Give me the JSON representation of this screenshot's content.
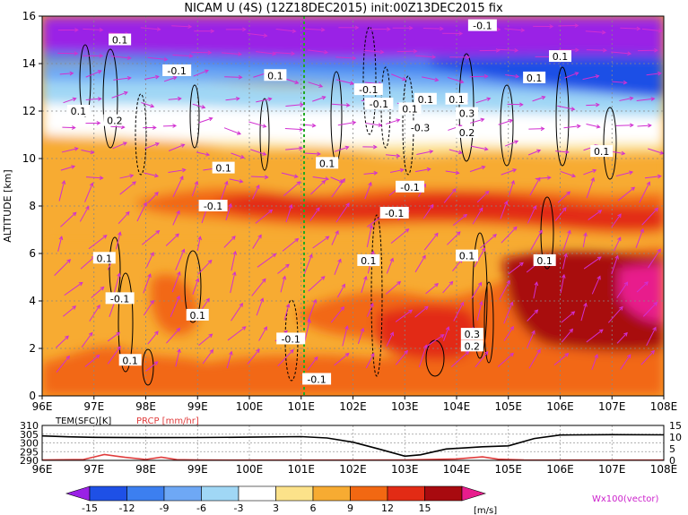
{
  "title": "NICAM U (4S) (12Z18DEC2015) init:00Z13DEC2015 fix",
  "chart_data": [
    {
      "type": "heatmap",
      "title": "NICAM U (4S) (12Z18DEC2015) init:00Z13DEC2015 fix",
      "ylabel": "ALTITUDE [km]",
      "x_ticks": [
        "96E",
        "97E",
        "98E",
        "99E",
        "100E",
        "101E",
        "102E",
        "103E",
        "104E",
        "105E",
        "106E",
        "107E",
        "108E"
      ],
      "y_ticks": [
        "0",
        "2",
        "4",
        "6",
        "8",
        "10",
        "12",
        "14",
        "16"
      ],
      "xlim": [
        96,
        108
      ],
      "ylim": [
        0,
        16
      ],
      "contour_labels": [
        {
          "text": "0.1",
          "x": 97.5,
          "y": 15.0
        },
        {
          "text": "-0.1",
          "x": 98.6,
          "y": 13.7
        },
        {
          "text": "0.1",
          "x": 100.5,
          "y": 13.5
        },
        {
          "text": "0.1",
          "x": 96.7,
          "y": 12.0
        },
        {
          "text": "0.2",
          "x": 97.4,
          "y": 11.6
        },
        {
          "text": "-0.1",
          "x": 102.3,
          "y": 12.9
        },
        {
          "text": "-0.1",
          "x": 102.5,
          "y": 12.3
        },
        {
          "text": "0.1",
          "x": 103.1,
          "y": 12.1
        },
        {
          "text": "0.1",
          "x": 103.4,
          "y": 12.5
        },
        {
          "text": "0.1",
          "x": 104.0,
          "y": 12.5
        },
        {
          "text": "0.3",
          "x": 104.2,
          "y": 11.9
        },
        {
          "text": "-0.3",
          "x": 103.3,
          "y": 11.3
        },
        {
          "text": "0.2",
          "x": 104.2,
          "y": 11.1
        },
        {
          "text": "-0.1",
          "x": 104.5,
          "y": 15.6
        },
        {
          "text": "0.1",
          "x": 106.0,
          "y": 14.3
        },
        {
          "text": "0.1",
          "x": 105.5,
          "y": 13.4
        },
        {
          "text": "0.1",
          "x": 106.8,
          "y": 10.3
        },
        {
          "text": "0.1",
          "x": 99.5,
          "y": 9.6
        },
        {
          "text": "0.1",
          "x": 101.5,
          "y": 9.8
        },
        {
          "text": "-0.1",
          "x": 103.1,
          "y": 8.8
        },
        {
          "text": "-0.1",
          "x": 99.3,
          "y": 8.0
        },
        {
          "text": "-0.1",
          "x": 102.8,
          "y": 7.7
        },
        {
          "text": "0.1",
          "x": 97.2,
          "y": 5.8
        },
        {
          "text": "0.1",
          "x": 102.3,
          "y": 5.7
        },
        {
          "text": "0.1",
          "x": 104.2,
          "y": 5.9
        },
        {
          "text": "0.1",
          "x": 105.7,
          "y": 5.7
        },
        {
          "text": "-0.1",
          "x": 97.5,
          "y": 4.1
        },
        {
          "text": "0.1",
          "x": 99.0,
          "y": 3.4
        },
        {
          "text": "-0.1",
          "x": 100.8,
          "y": 2.4
        },
        {
          "text": "0.3",
          "x": 104.3,
          "y": 2.6
        },
        {
          "text": "0.2",
          "x": 104.3,
          "y": 2.1
        },
        {
          "text": "0.1",
          "x": 97.7,
          "y": 1.5
        },
        {
          "text": "-0.1",
          "x": 101.3,
          "y": 0.7
        }
      ],
      "colorbar": {
        "ticks": [
          "-15",
          "-12",
          "-9",
          "-6",
          "-3",
          "3",
          "6",
          "9",
          "12",
          "15"
        ],
        "unit": "[m/s]",
        "colors": [
          "#9a21e6",
          "#1e50e6",
          "#3c7ff0",
          "#6ea8f5",
          "#a0d7f5",
          "#ffffff",
          "#fce28a",
          "#f7ab32",
          "#f26812",
          "#e22b15",
          "#a80a0f",
          "#e81c8c"
        ]
      },
      "vector_label": "Wx100(vector)"
    },
    {
      "type": "line",
      "x_ticks": [
        "96E",
        "97E",
        "98E",
        "99E",
        "100E",
        "101E",
        "102E",
        "103E",
        "104E",
        "105E",
        "106E",
        "107E",
        "108E"
      ],
      "left_axis": {
        "label": "TEM(SFC)[K]",
        "ticks": [
          "290",
          "295",
          "300",
          "305",
          "310"
        ],
        "ylim": [
          290,
          310
        ]
      },
      "right_axis": {
        "label": "PRCP [mm/hr]",
        "ticks": [
          "0",
          "5",
          "10",
          "15"
        ],
        "ylim": [
          0,
          15
        ]
      },
      "series": [
        {
          "name": "TEM(SFC)[K]",
          "color": "#000000",
          "x": [
            96,
            96.5,
            97,
            98,
            99,
            100,
            101,
            101.5,
            102,
            102.5,
            103,
            103.3,
            103.8,
            104.5,
            105,
            105.5,
            106,
            107,
            108
          ],
          "y": [
            304,
            303.5,
            303.2,
            303,
            303.1,
            303.3,
            303.6,
            302.8,
            300.4,
            296.5,
            292.4,
            293.2,
            296.5,
            297.8,
            298.3,
            302.5,
            304.5,
            304.7,
            304.6
          ]
        },
        {
          "name": "PRCP [mm/hr]",
          "color": "#e03c3c",
          "x": [
            96,
            96.8,
            97.2,
            97.6,
            98,
            98.3,
            98.6,
            99,
            100,
            101,
            102,
            103,
            104,
            104.5,
            104.8,
            105.3,
            106,
            108
          ],
          "y": [
            0.2,
            0.4,
            2.5,
            1.3,
            0.4,
            1.4,
            0.3,
            0.2,
            0.1,
            0.1,
            0.1,
            0.2,
            0.6,
            1.5,
            0.5,
            0.2,
            0.1,
            0.1
          ]
        }
      ]
    }
  ]
}
